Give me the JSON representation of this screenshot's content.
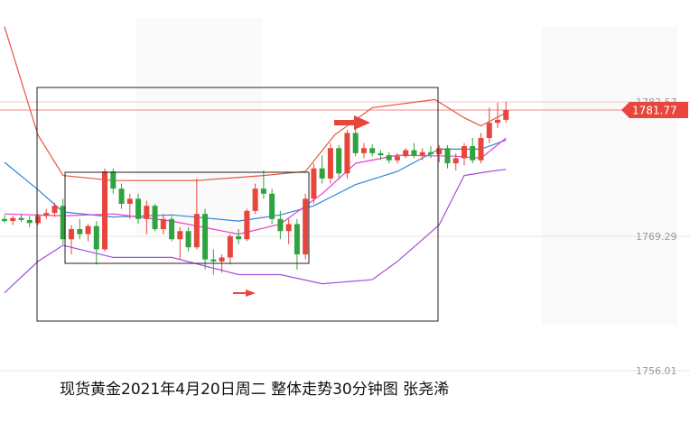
{
  "chart_data": {
    "type": "candlestick",
    "title": "现货黄金2021年4月20日周二 整体走势30分钟图 张尧浠",
    "up_color": "#e8453c",
    "down_color": "#2fa33f",
    "open": [
      1771.0,
      1770.8,
      1771.1,
      1770.9,
      1770.6,
      1771.3,
      1771.6,
      1772.3,
      1769.0,
      1770.0,
      1769.5,
      1770.3,
      1768.0,
      1775.7,
      1774.0,
      1772.5,
      1773.0,
      1771.0,
      1772.3,
      1770.0,
      1771.0,
      1769.0,
      1769.8,
      1768.2,
      1771.5,
      1767.0,
      1766.8,
      1767.2,
      1769.3,
      1769.0,
      1771.8,
      1774.0,
      1773.5,
      1771.0,
      1769.8,
      1770.5,
      1767.5,
      1773.0,
      1776.0,
      1775.0,
      1778.0,
      1775.5,
      1779.5,
      1777.5,
      1778.0,
      1777.5,
      1777.3,
      1776.8,
      1777.2,
      1777.8,
      1777.3,
      1777.6,
      1777.4,
      1778.0,
      1776.5,
      1777.0,
      1778.2,
      1776.8,
      1779.0,
      1780.5,
      1780.8
    ],
    "high": [
      1771.4,
      1771.3,
      1771.5,
      1771.3,
      1771.5,
      1772.0,
      1772.6,
      1773.0,
      1770.4,
      1771.0,
      1770.5,
      1770.8,
      1776.0,
      1776.0,
      1774.5,
      1773.5,
      1773.5,
      1772.8,
      1772.5,
      1771.5,
      1771.3,
      1770.2,
      1770.2,
      1775.0,
      1772.0,
      1768.0,
      1767.5,
      1769.5,
      1770.0,
      1772.0,
      1774.5,
      1775.8,
      1774.0,
      1771.8,
      1771.0,
      1771.0,
      1773.5,
      1776.5,
      1777.3,
      1778.5,
      1778.3,
      1779.8,
      1780.0,
      1778.5,
      1778.4,
      1777.8,
      1777.6,
      1777.5,
      1778.0,
      1778.5,
      1778.0,
      1778.2,
      1778.3,
      1778.3,
      1777.5,
      1778.5,
      1779.0,
      1779.5,
      1782.0,
      1782.5,
      1782.6
    ],
    "low": [
      1770.6,
      1770.4,
      1770.7,
      1770.2,
      1770.4,
      1771.0,
      1771.2,
      1768.5,
      1767.5,
      1769.0,
      1768.8,
      1766.5,
      1767.8,
      1773.5,
      1772.0,
      1771.0,
      1770.5,
      1769.5,
      1769.8,
      1769.5,
      1768.8,
      1767.0,
      1767.8,
      1768.0,
      1766.0,
      1765.5,
      1765.7,
      1766.5,
      1768.5,
      1768.8,
      1771.5,
      1773.0,
      1770.5,
      1769.0,
      1768.5,
      1766.0,
      1767.0,
      1772.5,
      1774.5,
      1774.5,
      1775.0,
      1775.0,
      1777.2,
      1777.0,
      1777.2,
      1776.8,
      1776.5,
      1776.5,
      1777.0,
      1777.0,
      1776.8,
      1777.0,
      1776.6,
      1776.0,
      1775.8,
      1776.3,
      1776.5,
      1776.5,
      1778.5,
      1780.0,
      1780.5
    ],
    "close": [
      1770.8,
      1771.1,
      1770.9,
      1770.6,
      1771.3,
      1771.6,
      1772.3,
      1769.0,
      1770.0,
      1769.5,
      1770.3,
      1768.0,
      1775.7,
      1774.0,
      1772.5,
      1773.0,
      1771.0,
      1772.3,
      1770.0,
      1771.0,
      1769.0,
      1769.8,
      1768.2,
      1771.5,
      1767.0,
      1766.8,
      1767.2,
      1769.3,
      1769.0,
      1771.8,
      1774.0,
      1773.5,
      1771.0,
      1769.8,
      1770.5,
      1767.5,
      1773.0,
      1776.0,
      1775.0,
      1778.0,
      1775.5,
      1779.5,
      1777.5,
      1778.0,
      1777.5,
      1777.3,
      1776.8,
      1777.2,
      1777.8,
      1777.3,
      1777.6,
      1777.4,
      1778.0,
      1776.5,
      1777.0,
      1778.2,
      1776.8,
      1779.0,
      1780.5,
      1780.8,
      1781.77
    ],
    "lines": [
      {
        "color": "#e8553f",
        "x": [
          0,
          4,
          7,
          13,
          23,
          31,
          36,
          39.5,
          44,
          51.5,
          55,
          57,
          60
        ],
        "values": [
          1790.0,
          1779.3,
          1775.3,
          1774.8,
          1774.8,
          1775.3,
          1775.7,
          1779.3,
          1782.0,
          1782.8,
          1781.0,
          1780.2,
          1781.5
        ]
      },
      {
        "color": "#2f86d6",
        "x": [
          0,
          4,
          7,
          13,
          20,
          28,
          33,
          37,
          42,
          47,
          52,
          57,
          60
        ],
        "values": [
          1776.6,
          1773.9,
          1771.7,
          1771.2,
          1771.4,
          1770.8,
          1771.4,
          1772.3,
          1774.4,
          1775.7,
          1777.9,
          1777.9,
          1778.8
        ]
      },
      {
        "color": "#a050d8",
        "x": [
          0,
          4,
          7,
          13,
          20,
          28,
          33,
          38,
          44,
          47,
          52,
          55,
          58,
          60
        ],
        "values": [
          1763.7,
          1766.8,
          1768.4,
          1767.2,
          1767.2,
          1765.5,
          1765.5,
          1764.6,
          1765.0,
          1766.8,
          1770.4,
          1775.3,
          1775.7,
          1775.9
        ]
      },
      {
        "color": "#e83fc8",
        "x": [
          0,
          7,
          13,
          20,
          28,
          33,
          38,
          42,
          47,
          54,
          57,
          60
        ],
        "values": [
          1771.5,
          1771.3,
          1771.5,
          1770.8,
          1769.5,
          1770.5,
          1773.5,
          1776.5,
          1777.3,
          1777.2,
          1777.0,
          1779.0
        ]
      }
    ],
    "xlim": [
      -0.54,
      75.1
    ],
    "ylim": [
      1749.95,
      1792.64
    ],
    "yticks": [
      1782.57,
      1769.29,
      1756.01
    ],
    "last_price": 1781.77
  }
}
